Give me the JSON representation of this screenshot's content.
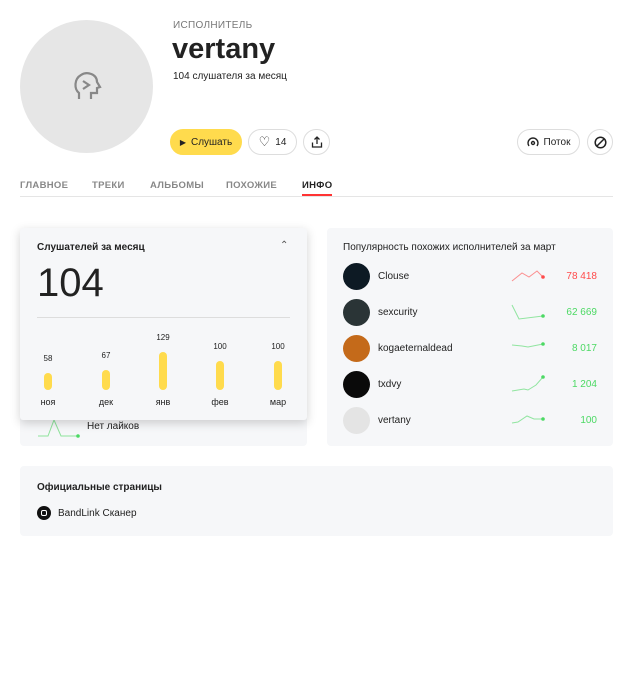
{
  "artist": {
    "type_label": "ИСПОЛНИТЕЛЬ",
    "name": "vertany",
    "listeners": "104 слушателя за месяц"
  },
  "actions": {
    "play": "Слушать",
    "likes": "14",
    "stream": "Поток"
  },
  "tabs": [
    {
      "label": "ГЛАВНОЕ"
    },
    {
      "label": "ТРЕКИ"
    },
    {
      "label": "АЛЬБОМЫ"
    },
    {
      "label": "ПОХОЖИЕ"
    },
    {
      "label": "ИНФО",
      "active": true
    }
  ],
  "listeners_card": {
    "title": "Слушателей за месяц",
    "value": "104",
    "likes_text": "Нет лайков",
    "chart_data": {
      "type": "bar",
      "categories": [
        "ноя",
        "дек",
        "янв",
        "фев",
        "мар"
      ],
      "values": [
        58,
        67,
        129,
        100,
        100
      ],
      "color": "#ffdb4d"
    }
  },
  "similar": {
    "title": "Популярность похожих исполнителей за март",
    "items": [
      {
        "name": "Clouse",
        "value": "78 418",
        "trend": "down",
        "color": "#ff4a4a"
      },
      {
        "name": "sexcurity",
        "value": "62 669",
        "trend": "up",
        "color": "#4cd964"
      },
      {
        "name": "kogaeternaldead",
        "value": "8 017",
        "trend": "up",
        "color": "#4cd964"
      },
      {
        "name": "txdvy",
        "value": "1 204",
        "trend": "up",
        "color": "#4cd964"
      },
      {
        "name": "vertany",
        "value": "100",
        "trend": "up",
        "color": "#4cd964"
      }
    ]
  },
  "official": {
    "title": "Официальные страницы",
    "links": [
      {
        "label": "BandLink Сканер"
      }
    ]
  }
}
